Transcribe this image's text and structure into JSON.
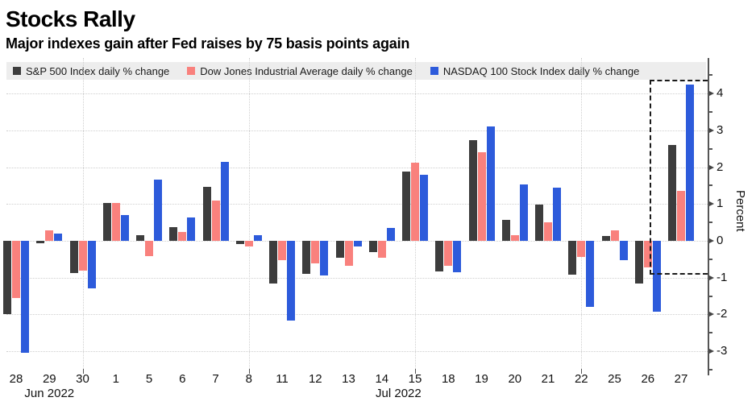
{
  "title": "Stocks Rally",
  "subtitle": "Major indexes gain after Fed raises by 75 basis points again",
  "legend": {
    "items": [
      {
        "label": "S&P 500 Index daily % change",
        "color": "#3d3d3d"
      },
      {
        "label": "Dow Jones Industrial Average daily % change",
        "color": "#f9817d"
      },
      {
        "label": "NASDAQ 100 Stock Index daily % change",
        "color": "#2d5bdb"
      }
    ]
  },
  "axis": {
    "ylabel": "Percent",
    "yticks": [
      "4",
      "3",
      "2",
      "1",
      "0",
      "-1",
      "-2",
      "-3"
    ]
  },
  "chart_data": {
    "type": "bar",
    "title": "Stocks Rally",
    "subtitle": "Major indexes gain after Fed raises by 75 basis points again",
    "xlabel": "",
    "ylabel": "Percent",
    "unit": "% daily change",
    "ylim": [
      -3.5,
      5.0
    ],
    "yticks": [
      4,
      3,
      2,
      1,
      0,
      -1,
      -2,
      -3
    ],
    "ytick_minor_step": 0.5,
    "grid": "dotted",
    "legend_position": "top",
    "categories": [
      "28",
      "29",
      "30",
      "1",
      "5",
      "6",
      "7",
      "8",
      "11",
      "12",
      "13",
      "14",
      "15",
      "18",
      "19",
      "20",
      "21",
      "22",
      "25",
      "26",
      "27"
    ],
    "month_labels": [
      {
        "label": "Jun 2022",
        "center_index": 1.0
      },
      {
        "label": "Jul 2022",
        "center_index": 11.5
      }
    ],
    "vertical_gridline_indices": [
      2,
      7,
      12,
      17
    ],
    "series": [
      {
        "name": "S&P 500 Index daily % change",
        "color": "#3d3d3d",
        "values": [
          -2.0,
          -0.07,
          -0.88,
          1.03,
          0.16,
          0.37,
          1.47,
          -0.08,
          -1.15,
          -0.9,
          -0.45,
          -0.31,
          1.88,
          -0.83,
          2.73,
          0.58,
          0.98,
          -0.92,
          0.13,
          -1.15,
          2.6
        ]
      },
      {
        "name": "Dow Jones Industrial Average daily % change",
        "color": "#f9817d",
        "values": [
          -1.55,
          0.28,
          -0.8,
          1.03,
          -0.42,
          0.24,
          1.1,
          -0.16,
          -0.52,
          -0.62,
          -0.67,
          -0.46,
          2.13,
          -0.68,
          2.41,
          0.15,
          0.5,
          -0.43,
          0.28,
          -0.72,
          1.36
        ]
      },
      {
        "name": "NASDAQ 100 Stock Index daily % change",
        "color": "#2d5bdb",
        "values": [
          -3.05,
          0.19,
          -1.3,
          0.7,
          1.67,
          0.63,
          2.15,
          0.16,
          -2.17,
          -0.95,
          -0.16,
          0.36,
          1.8,
          -0.85,
          3.1,
          1.54,
          1.44,
          -1.79,
          -0.53,
          -1.93,
          4.24
        ]
      }
    ],
    "highlight_box": {
      "style": "dashed",
      "left_index": 19.05,
      "right": "y-axis",
      "top_value": 4.37,
      "bottom_value": -0.92
    }
  }
}
